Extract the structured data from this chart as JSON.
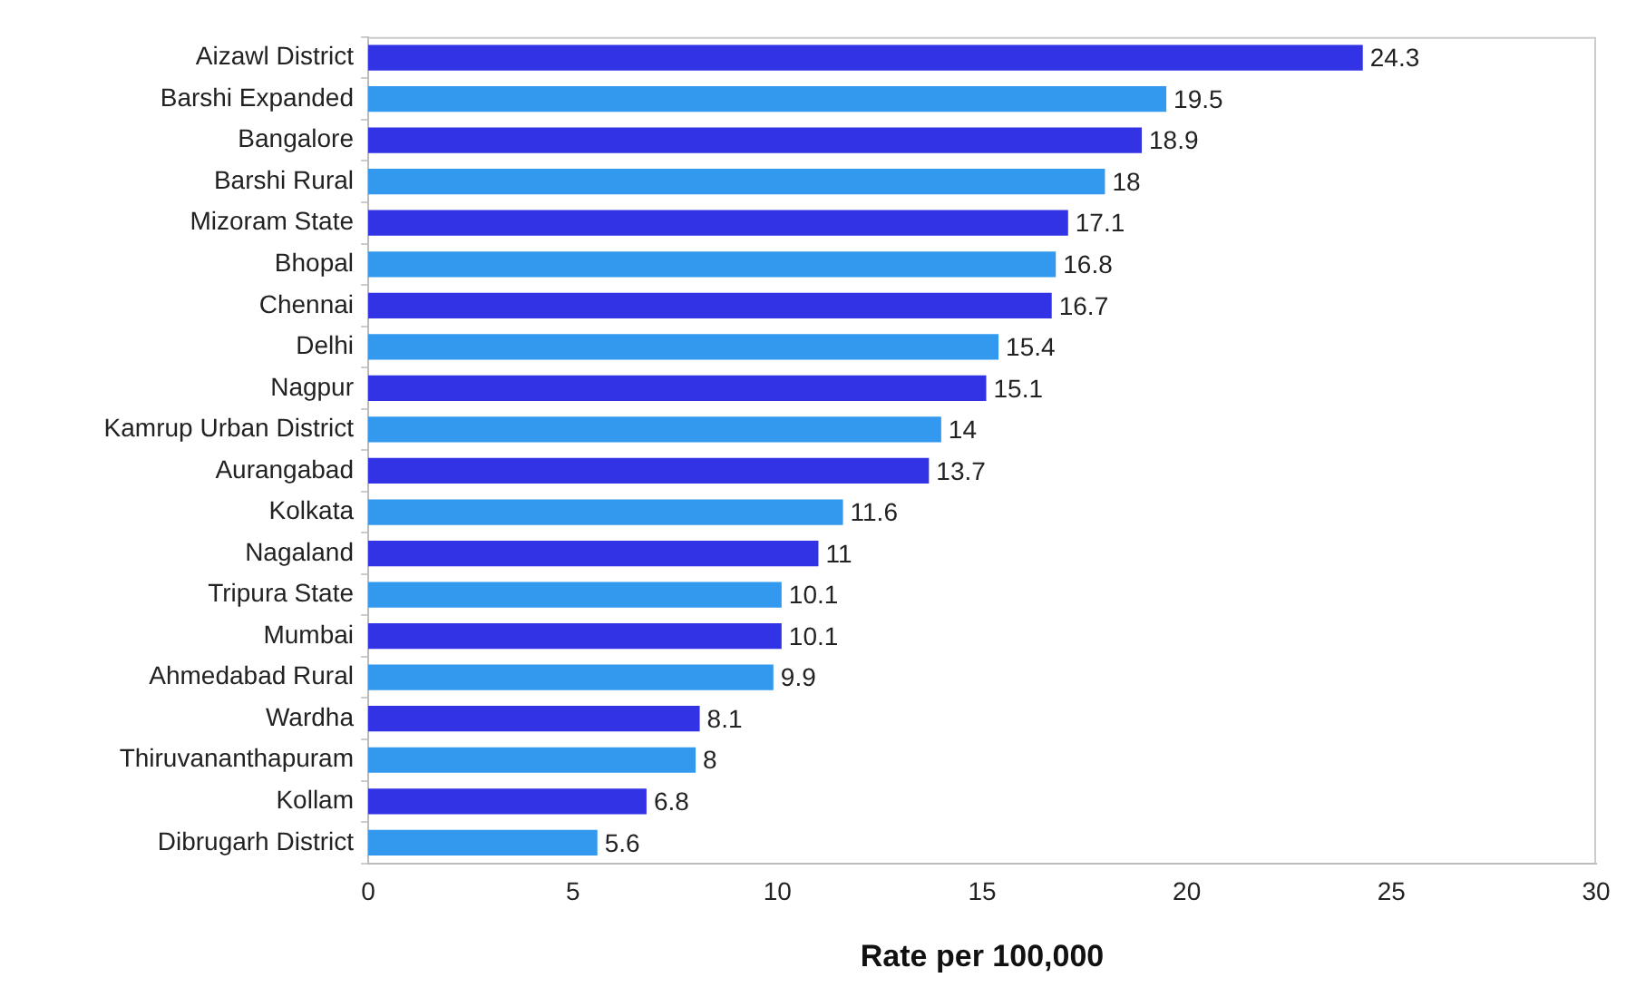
{
  "chart_data": {
    "type": "bar",
    "orientation": "horizontal",
    "xlabel": "Rate per 100,000",
    "categories": [
      "Aizawl District",
      "Barshi Expanded",
      "Bangalore",
      "Barshi Rural",
      "Mizoram State",
      "Bhopal",
      "Chennai",
      "Delhi",
      "Nagpur",
      "Kamrup Urban District",
      "Aurangabad",
      "Kolkata",
      "Nagaland",
      "Tripura State",
      "Mumbai",
      "Ahmedabad Rural",
      "Wardha",
      "Thiruvananthapuram",
      "Kollam",
      "Dibrugarh District"
    ],
    "values": [
      24.3,
      19.5,
      18.9,
      18,
      17.1,
      16.8,
      16.7,
      15.4,
      15.1,
      14,
      13.7,
      11.6,
      11,
      10.1,
      10.1,
      9.9,
      8.1,
      8,
      6.8,
      5.6
    ],
    "colors": [
      "#3333e6",
      "#3399ee",
      "#3333e6",
      "#3399ee",
      "#3333e6",
      "#3399ee",
      "#3333e6",
      "#3399ee",
      "#3333e6",
      "#3399ee",
      "#3333e6",
      "#3399ee",
      "#3333e6",
      "#3399ee",
      "#3333e6",
      "#3399ee",
      "#3333e6",
      "#3399ee",
      "#3333e6",
      "#3399ee"
    ],
    "xlim": [
      0,
      30
    ],
    "xticks": [
      0,
      5,
      10,
      15,
      20,
      25,
      30
    ],
    "data_labels": true,
    "grid": false,
    "legend": false
  }
}
